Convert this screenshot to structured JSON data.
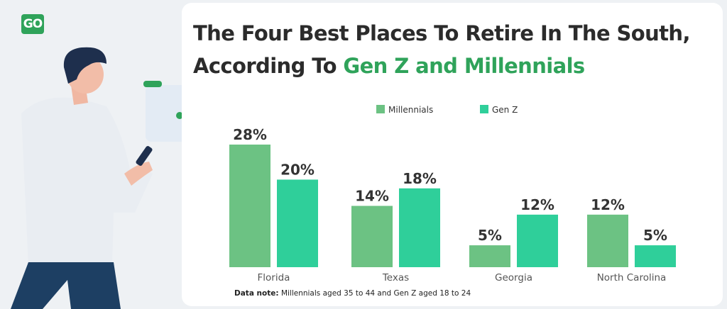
{
  "logo": {
    "text": "GO"
  },
  "title": {
    "part1": "The Four Best Places To Retire In The South, According To ",
    "highlight": "Gen Z and Millennials"
  },
  "note": {
    "label": "Data note:",
    "text": "Millennials aged 35 to 44 and Gen Z aged 18 to 24"
  },
  "colors": {
    "millennials": "#6cc283",
    "genz": "#2fcf9a",
    "highlight": "#2fa35a"
  },
  "chart_data": {
    "type": "bar",
    "categories": [
      "Florida",
      "Texas",
      "Georgia",
      "North Carolina"
    ],
    "series": [
      {
        "name": "Millennials",
        "values": [
          28,
          14,
          5,
          12
        ],
        "labels": [
          "28%",
          "14%",
          "5%",
          "12%"
        ]
      },
      {
        "name": "Gen Z",
        "values": [
          20,
          18,
          12,
          5
        ],
        "labels": [
          "20%",
          "18%",
          "12%",
          "5%"
        ]
      }
    ],
    "legend_position": "top",
    "grid": false,
    "ylim": [
      0,
      30
    ]
  }
}
